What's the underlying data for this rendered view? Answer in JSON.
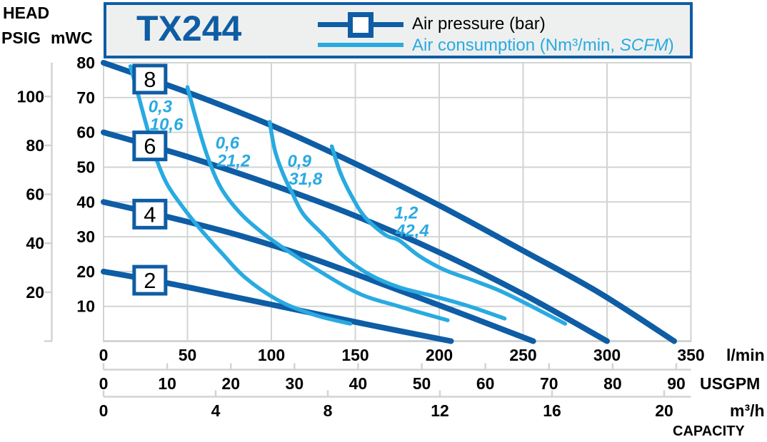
{
  "header": {
    "model": "TX244",
    "legend_pressure_label": "Air pressure (bar)",
    "legend_consumption_pre": "Air consumption (Nm³/min, ",
    "legend_consumption_italic": "SCFM",
    "legend_consumption_post": ")"
  },
  "y_axis": {
    "title": "HEAD",
    "psig_label": "PSIG",
    "mwc_label": "mWC",
    "psig_ticks": [
      20,
      40,
      60,
      80,
      100
    ],
    "mwc_ticks": [
      10,
      20,
      30,
      40,
      50,
      60,
      70,
      80
    ]
  },
  "x_axis": {
    "lmin_ticks": [
      0,
      50,
      100,
      150,
      200,
      250,
      300,
      350
    ],
    "lmin_unit": "l/min",
    "usgpm_ticks": [
      0,
      10,
      20,
      30,
      40,
      50,
      60,
      70,
      80,
      90
    ],
    "usgpm_unit": "USGPM",
    "m3h_ticks": [
      0,
      4,
      8,
      12,
      16,
      20
    ],
    "m3h_unit": "m³/h",
    "title": "CAPACITY"
  },
  "colors": {
    "dark_blue": "#0e5da5",
    "light_blue": "#29aae1",
    "grid": "#d2d4d4",
    "header_bg": "#eef0ef"
  },
  "chart_data": {
    "type": "line",
    "title": "TX244 pump performance curve",
    "x_label": "CAPACITY",
    "x_units": [
      "l/min",
      "USGPM",
      "m³/h"
    ],
    "x_range_lmin": [
      0,
      350
    ],
    "y_label": "HEAD",
    "y_units": [
      "PSIG",
      "mWC"
    ],
    "y_range_mwc": [
      0,
      80
    ],
    "grid": true,
    "legend_position": "top",
    "pressure_curves": [
      {
        "bar": "8",
        "label_center_lmin_mwc": [
          27.6,
          75.3
        ],
        "points_lmin_mwc": [
          [
            0,
            80
          ],
          [
            50,
            71.5
          ],
          [
            100,
            62
          ],
          [
            150,
            51
          ],
          [
            200,
            39
          ],
          [
            250,
            26
          ],
          [
            295,
            14
          ],
          [
            340,
            0
          ]
        ]
      },
      {
        "bar": "6",
        "label_center_lmin_mwc": [
          27.6,
          56.1
        ],
        "points_lmin_mwc": [
          [
            0,
            60
          ],
          [
            50,
            53
          ],
          [
            100,
            45
          ],
          [
            150,
            36
          ],
          [
            200,
            25.5
          ],
          [
            250,
            13.5
          ],
          [
            300,
            0
          ]
        ]
      },
      {
        "bar": "4",
        "label_center_lmin_mwc": [
          27.6,
          36.5
        ],
        "points_lmin_mwc": [
          [
            0,
            40
          ],
          [
            40,
            35.5
          ],
          [
            80,
            30.5
          ],
          [
            120,
            24.5
          ],
          [
            160,
            17.5
          ],
          [
            210,
            8.5
          ],
          [
            256,
            0
          ]
        ]
      },
      {
        "bar": "2",
        "label_center_lmin_mwc": [
          27.6,
          17.5
        ],
        "points_lmin_mwc": [
          [
            0,
            20
          ],
          [
            40,
            16.5
          ],
          [
            80,
            12.5
          ],
          [
            120,
            8.5
          ],
          [
            160,
            4.5
          ],
          [
            207,
            0
          ]
        ]
      }
    ],
    "consumption_curves": [
      {
        "nm3_min": "0,3",
        "scfm": "10,6",
        "label_pos_lmin_mwc": [
          26.7,
          69.2
        ],
        "points_lmin_mwc": [
          [
            16,
            79
          ],
          [
            20,
            72
          ],
          [
            25,
            63
          ],
          [
            31,
            53
          ],
          [
            38,
            45
          ],
          [
            48,
            38
          ],
          [
            58,
            32
          ],
          [
            71,
            25
          ],
          [
            85,
            18
          ],
          [
            105,
            11.5
          ],
          [
            126,
            7.5
          ],
          [
            147,
            5
          ]
        ]
      },
      {
        "nm3_min": "0,6",
        "scfm": "21,2",
        "label_pos_lmin_mwc": [
          66.7,
          58.8
        ],
        "points_lmin_mwc": [
          [
            50,
            73
          ],
          [
            55,
            64
          ],
          [
            62,
            53
          ],
          [
            70,
            44
          ],
          [
            82,
            36.5
          ],
          [
            95,
            31
          ],
          [
            108,
            26.5
          ],
          [
            129,
            20
          ],
          [
            153,
            13.5
          ],
          [
            176,
            10
          ],
          [
            205,
            6
          ]
        ]
      },
      {
        "nm3_min": "0,9",
        "scfm": "31,8",
        "label_pos_lmin_mwc": [
          109.6,
          53.6
        ],
        "points_lmin_mwc": [
          [
            99,
            63
          ],
          [
            102,
            55
          ],
          [
            107,
            48
          ],
          [
            112,
            43
          ],
          [
            119,
            36.5
          ],
          [
            131,
            30.5
          ],
          [
            144,
            24
          ],
          [
            159,
            19
          ],
          [
            176,
            15.5
          ],
          [
            196,
            13
          ],
          [
            218,
            10
          ],
          [
            239,
            6.5
          ]
        ]
      },
      {
        "nm3_min": "1,2",
        "scfm": "42,4",
        "label_pos_lmin_mwc": [
          173.2,
          38.7
        ],
        "points_lmin_mwc": [
          [
            136,
            56
          ],
          [
            141,
            48.5
          ],
          [
            148,
            41.5
          ],
          [
            156,
            35.5
          ],
          [
            168,
            30.5
          ],
          [
            176,
            29
          ],
          [
            188,
            24.5
          ],
          [
            203,
            20.5
          ],
          [
            220,
            17.5
          ],
          [
            236,
            14.5
          ],
          [
            253,
            10.5
          ],
          [
            275,
            5
          ]
        ]
      }
    ]
  }
}
